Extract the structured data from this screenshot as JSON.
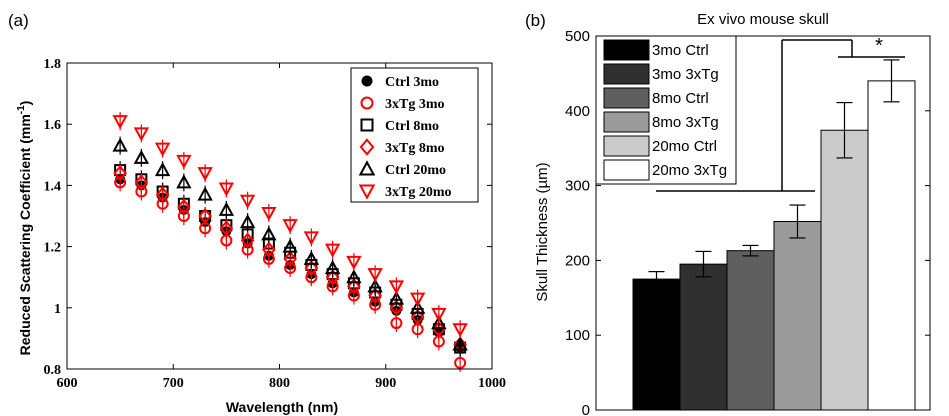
{
  "chart_data": [
    {
      "panel_label": "(a)",
      "type": "scatter",
      "xlabel": "Wavelength (nm)",
      "ylabel": "Reduced Scattering Coefficient (mm",
      "ylabel_unit_sup": "-1",
      "ylabel_close": ")",
      "xlim": [
        600,
        1000
      ],
      "ylim": [
        0.8,
        1.8
      ],
      "xticks": [
        600,
        700,
        800,
        900,
        1000
      ],
      "yticks": [
        0.8,
        1,
        1.2,
        1.4,
        1.6,
        1.8
      ],
      "ytick_labels": [
        "0.8",
        "1",
        "1.2",
        "1.4",
        "1.6",
        "1.8"
      ],
      "legend_position": "top-right",
      "x": [
        650,
        670,
        690,
        710,
        730,
        750,
        770,
        790,
        810,
        830,
        850,
        870,
        890,
        910,
        930,
        950,
        970
      ],
      "series": [
        {
          "name": "Ctrl 3mo",
          "marker": "circle-filled",
          "color": "#000000",
          "values": [
            1.42,
            1.4,
            1.36,
            1.32,
            1.28,
            1.25,
            1.21,
            1.17,
            1.14,
            1.11,
            1.08,
            1.05,
            1.02,
            0.99,
            0.96,
            0.92,
            0.87
          ]
        },
        {
          "name": "3xTg 3mo",
          "marker": "circle-open",
          "color": "#ff0000",
          "values": [
            1.41,
            1.38,
            1.34,
            1.3,
            1.26,
            1.22,
            1.19,
            1.16,
            1.13,
            1.1,
            1.07,
            1.04,
            1.01,
            0.95,
            0.93,
            0.89,
            0.82
          ]
        },
        {
          "name": "Ctrl 8mo",
          "marker": "square-open",
          "color": "#000000",
          "values": [
            1.45,
            1.42,
            1.38,
            1.34,
            1.3,
            1.27,
            1.24,
            1.21,
            1.18,
            1.14,
            1.11,
            1.08,
            1.05,
            1.01,
            0.98,
            0.93,
            0.87
          ]
        },
        {
          "name": "3xTg 8mo",
          "marker": "diamond-open",
          "color": "#ff0000",
          "values": [
            1.44,
            1.41,
            1.37,
            1.33,
            1.3,
            1.26,
            1.22,
            1.19,
            1.16,
            1.13,
            1.1,
            1.07,
            1.04,
            1.0,
            0.97,
            0.93,
            0.88
          ]
        },
        {
          "name": "Ctrl 20mo",
          "marker": "triangle-up-open",
          "color": "#000000",
          "values": [
            1.53,
            1.49,
            1.45,
            1.41,
            1.37,
            1.32,
            1.28,
            1.24,
            1.2,
            1.16,
            1.13,
            1.1,
            1.07,
            1.03,
            1.0,
            0.95,
            0.88
          ]
        },
        {
          "name": "3xTg 20mo",
          "marker": "triangle-down-open",
          "color": "#ff0000",
          "values": [
            1.61,
            1.57,
            1.52,
            1.48,
            1.44,
            1.39,
            1.35,
            1.31,
            1.27,
            1.23,
            1.19,
            1.15,
            1.11,
            1.07,
            1.03,
            0.98,
            0.93
          ]
        }
      ]
    },
    {
      "panel_label": "(b)",
      "type": "bar",
      "title": "Ex vivo mouse skull",
      "ylabel": "Skull Thickness (µm)",
      "ylim": [
        0,
        500
      ],
      "yticks": [
        0,
        100,
        200,
        300,
        400,
        500
      ],
      "legend_position": "top-left",
      "categories": [
        "3mo Ctrl",
        "3mo 3xTg",
        "8mo Ctrl",
        "8mo 3xTg",
        "20mo Ctrl",
        "20mo 3xTg"
      ],
      "colors": [
        "#000000",
        "#303030",
        "#5f5f5f",
        "#9b9b9b",
        "#cbcbcb",
        "#ffffff"
      ],
      "values": [
        175,
        195,
        213,
        252,
        374,
        440
      ],
      "errors": [
        10,
        17,
        7,
        22,
        37,
        28
      ],
      "significance_marker": "*"
    }
  ]
}
